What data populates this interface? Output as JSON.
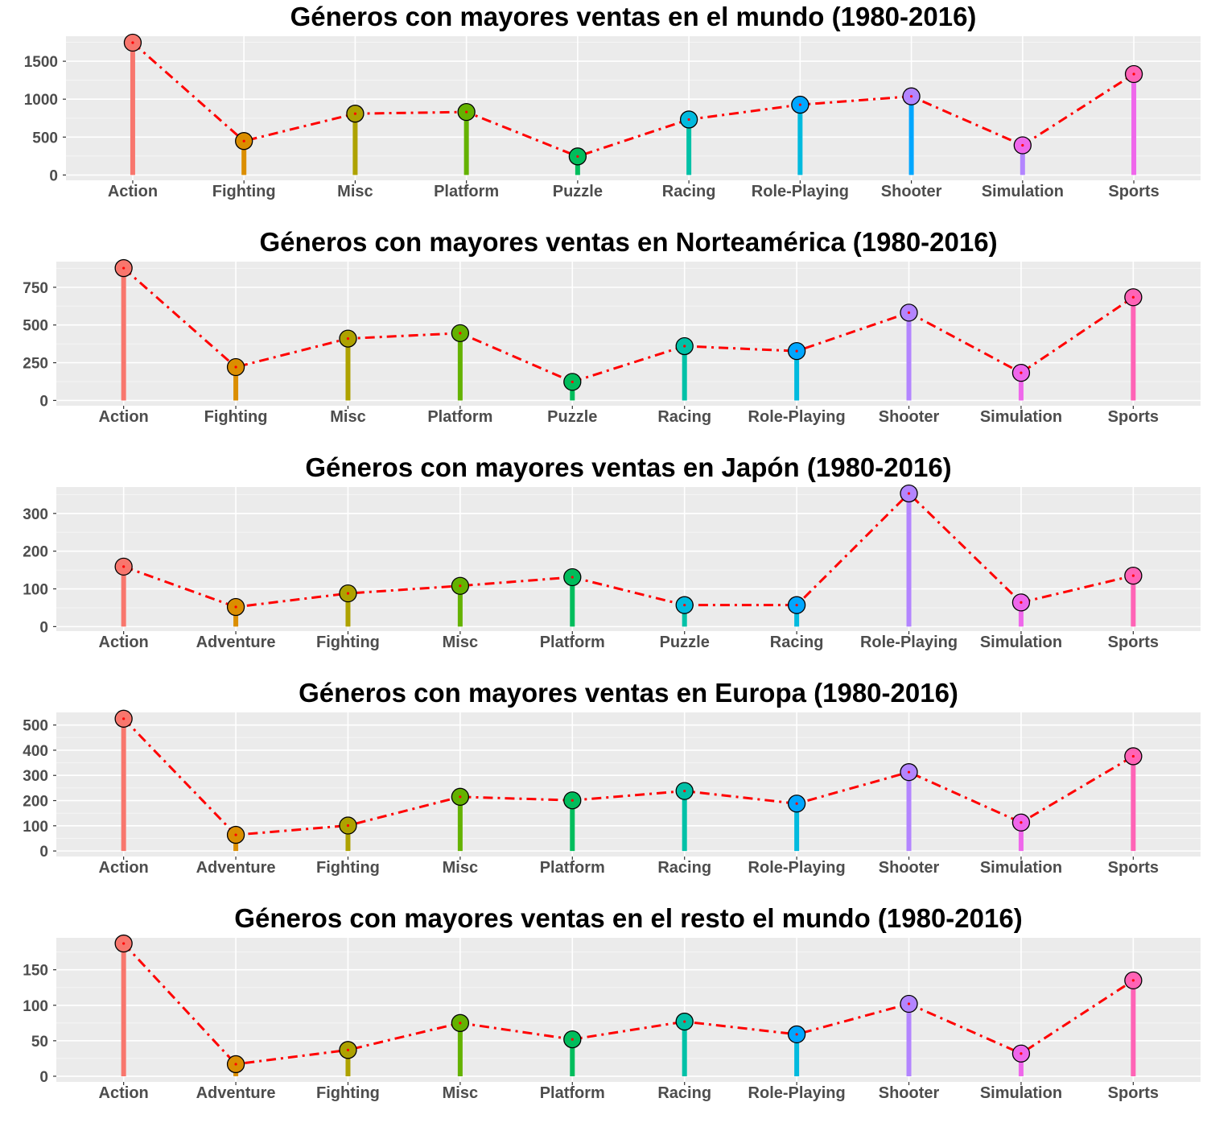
{
  "colors": {
    "panel_background": "#ebebeb",
    "grid_major": "#ffffff",
    "grid_minor": "#f5f5f5",
    "trend_line": "#ff0000",
    "point_outline": "#000000"
  },
  "genre_colors": {
    "Action": "#F8766D",
    "Adventure": "#DB8E00",
    "Fighting": "#AEA200",
    "Misc": "#64B200",
    "Platform": "#00BD5C",
    "Puzzle": "#00C1A7",
    "Racing": "#00BADE",
    "Role-Playing": "#00A6FF",
    "Shooter": "#B385FF",
    "Simulation": "#EF67EB",
    "Sports": "#FF63B6"
  },
  "chart_data": [
    {
      "type": "lollipop",
      "title": "Géneros con mayores ventas en el mundo (1980-2016)",
      "xlabel": "",
      "ylabel": "",
      "categories": [
        "Action",
        "Fighting",
        "Misc",
        "Platform",
        "Puzzle",
        "Racing",
        "Role-Playing",
        "Shooter",
        "Simulation",
        "Sports"
      ],
      "bar_colors": [
        "#F8766D",
        "#DB8E00",
        "#AEA200",
        "#64B200",
        "#00BD5C",
        "#00C1A7",
        "#00BADE",
        "#00A6FF",
        "#B385FF",
        "#EF67EB"
      ],
      "point_colors": [
        "#F8766D",
        "#DB8E00",
        "#AEA200",
        "#64B200",
        "#00BD5C",
        "#00BADE",
        "#00A6FF",
        "#B385FF",
        "#EF67EB",
        "#FF63B6"
      ],
      "values": [
        1745,
        448,
        809,
        831,
        245,
        732,
        927,
        1037,
        392,
        1331
      ],
      "yticks": [
        0,
        500,
        1000,
        1500
      ],
      "ylim": [
        -70,
        1830
      ],
      "grid": true,
      "legend": "none"
    },
    {
      "type": "lollipop",
      "title": "Géneros con mayores ventas en Norteamérica (1980-2016)",
      "xlabel": "",
      "ylabel": "",
      "categories": [
        "Action",
        "Fighting",
        "Misc",
        "Platform",
        "Puzzle",
        "Racing",
        "Role-Playing",
        "Shooter",
        "Simulation",
        "Sports"
      ],
      "bar_colors": [
        "#F8766D",
        "#DB8E00",
        "#AEA200",
        "#64B200",
        "#00BD5C",
        "#00C1A7",
        "#00BADE",
        "#B385FF",
        "#EF67EB",
        "#FF63B6"
      ],
      "point_colors": [
        "#F8766D",
        "#DB8E00",
        "#AEA200",
        "#64B200",
        "#00BD5C",
        "#00C1A7",
        "#00A6FF",
        "#B385FF",
        "#EF67EB",
        "#FF63B6"
      ],
      "values": [
        877,
        221,
        410,
        446,
        123,
        360,
        327,
        582,
        183,
        684
      ],
      "yticks": [
        0,
        250,
        500,
        750
      ],
      "ylim": [
        -35,
        920
      ],
      "grid": true,
      "legend": "none"
    },
    {
      "type": "lollipop",
      "title": "Géneros con mayores ventas en Japón (1980-2016)",
      "xlabel": "",
      "ylabel": "",
      "categories": [
        "Action",
        "Adventure",
        "Fighting",
        "Misc",
        "Platform",
        "Puzzle",
        "Racing",
        "Role-Playing",
        "Simulation",
        "Sports"
      ],
      "bar_colors": [
        "#F8766D",
        "#DB8E00",
        "#AEA200",
        "#64B200",
        "#00BD5C",
        "#00C1A7",
        "#00BADE",
        "#B385FF",
        "#EF67EB",
        "#FF63B6"
      ],
      "point_colors": [
        "#F8766D",
        "#DB8E00",
        "#AEA200",
        "#64B200",
        "#00BD5C",
        "#00BADE",
        "#00A6FF",
        "#B385FF",
        "#EF67EB",
        "#FF63B6"
      ],
      "values": [
        159,
        52,
        88,
        108,
        131,
        57,
        57,
        353,
        64,
        135
      ],
      "yticks": [
        0,
        100,
        200,
        300
      ],
      "ylim": [
        -12,
        370
      ],
      "grid": true,
      "legend": "none"
    },
    {
      "type": "lollipop",
      "title": "Géneros con mayores ventas en Europa (1980-2016)",
      "xlabel": "",
      "ylabel": "",
      "categories": [
        "Action",
        "Adventure",
        "Fighting",
        "Misc",
        "Platform",
        "Racing",
        "Role-Playing",
        "Shooter",
        "Simulation",
        "Sports"
      ],
      "bar_colors": [
        "#F8766D",
        "#DB8E00",
        "#AEA200",
        "#64B200",
        "#00BD5C",
        "#00C1A7",
        "#00BADE",
        "#B385FF",
        "#EF67EB",
        "#FF63B6"
      ],
      "point_colors": [
        "#F8766D",
        "#DB8E00",
        "#AEA200",
        "#64B200",
        "#00BD5C",
        "#00C1A7",
        "#00A6FF",
        "#B385FF",
        "#EF67EB",
        "#FF63B6"
      ],
      "values": [
        525,
        64,
        101,
        215,
        201,
        238,
        188,
        313,
        113,
        376
      ],
      "yticks": [
        0,
        100,
        200,
        300,
        400,
        500
      ],
      "ylim": [
        -22,
        550
      ],
      "grid": true,
      "legend": "none"
    },
    {
      "type": "lollipop",
      "title": "Géneros con mayores ventas en el resto el mundo (1980-2016)",
      "xlabel": "",
      "ylabel": "",
      "categories": [
        "Action",
        "Adventure",
        "Fighting",
        "Misc",
        "Platform",
        "Racing",
        "Role-Playing",
        "Shooter",
        "Simulation",
        "Sports"
      ],
      "bar_colors": [
        "#F8766D",
        "#DB8E00",
        "#AEA200",
        "#64B200",
        "#00BD5C",
        "#00C1A7",
        "#00BADE",
        "#B385FF",
        "#EF67EB",
        "#FF63B6"
      ],
      "point_colors": [
        "#F8766D",
        "#DB8E00",
        "#AEA200",
        "#64B200",
        "#00BD5C",
        "#00C1A7",
        "#00A6FF",
        "#B385FF",
        "#EF67EB",
        "#FF63B6"
      ],
      "values": [
        187,
        17,
        37,
        75,
        52,
        77,
        59,
        102,
        32,
        135
      ],
      "yticks": [
        0,
        50,
        100,
        150
      ],
      "ylim": [
        -8,
        195
      ],
      "grid": true,
      "legend": "none"
    }
  ]
}
